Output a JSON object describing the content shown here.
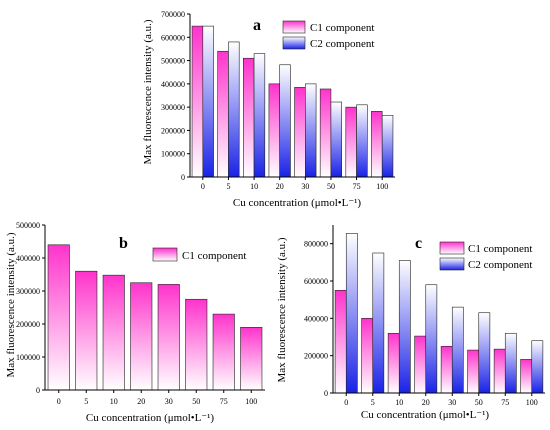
{
  "colors": {
    "c1_top": "#ff33cc",
    "c1_bottom": "#ffffff",
    "c2_top": "#ffffff",
    "c2_bottom": "#1a22e6"
  },
  "chart_data": [
    {
      "type": "bar",
      "title": "a",
      "xlabel": "Cu concentration (μmol•L⁻¹)",
      "ylabel": "Max fluorescence intensity (a.u.)",
      "categories": [
        "0",
        "5",
        "10",
        "20",
        "30",
        "50",
        "75",
        "100"
      ],
      "ylim": [
        0,
        700000
      ],
      "yticks": [
        0,
        100000,
        200000,
        300000,
        400000,
        500000,
        600000,
        700000
      ],
      "legend_position": "top-right",
      "series": [
        {
          "name": "C1 component",
          "values": [
            648000,
            540000,
            510000,
            400000,
            385000,
            378000,
            300000,
            282000
          ]
        },
        {
          "name": "C2 component",
          "values": [
            648000,
            580000,
            530000,
            482000,
            400000,
            322000,
            310000,
            265000
          ]
        }
      ]
    },
    {
      "type": "bar",
      "title": "b",
      "xlabel": "Cu concentration (μmol•L⁻¹)",
      "ylabel": "Max fluorescence intensity (a.u.)",
      "categories": [
        "0",
        "5",
        "10",
        "20",
        "30",
        "50",
        "75",
        "100"
      ],
      "ylim": [
        0,
        500000
      ],
      "yticks": [
        0,
        100000,
        200000,
        300000,
        400000,
        500000
      ],
      "legend_position": "top-right",
      "series": [
        {
          "name": "C1 component",
          "values": [
            440000,
            360000,
            348000,
            325000,
            320000,
            275000,
            230000,
            190000
          ]
        }
      ]
    },
    {
      "type": "bar",
      "title": "c",
      "xlabel": "Cu concentration (μmol•L⁻¹)",
      "ylabel": "Max fluorescence intensity (a.u.)",
      "categories": [
        "0",
        "5",
        "10",
        "20",
        "30",
        "50",
        "75",
        "100"
      ],
      "ylim": [
        0,
        900000
      ],
      "yticks": [
        0,
        200000,
        400000,
        600000,
        800000
      ],
      "legend_position": "top-right",
      "series": [
        {
          "name": "C1 component",
          "values": [
            550000,
            400000,
            320000,
            305000,
            250000,
            230000,
            235000,
            180000
          ]
        },
        {
          "name": "C2 component",
          "values": [
            855000,
            750000,
            710000,
            580000,
            460000,
            430000,
            320000,
            280000
          ]
        }
      ]
    }
  ]
}
